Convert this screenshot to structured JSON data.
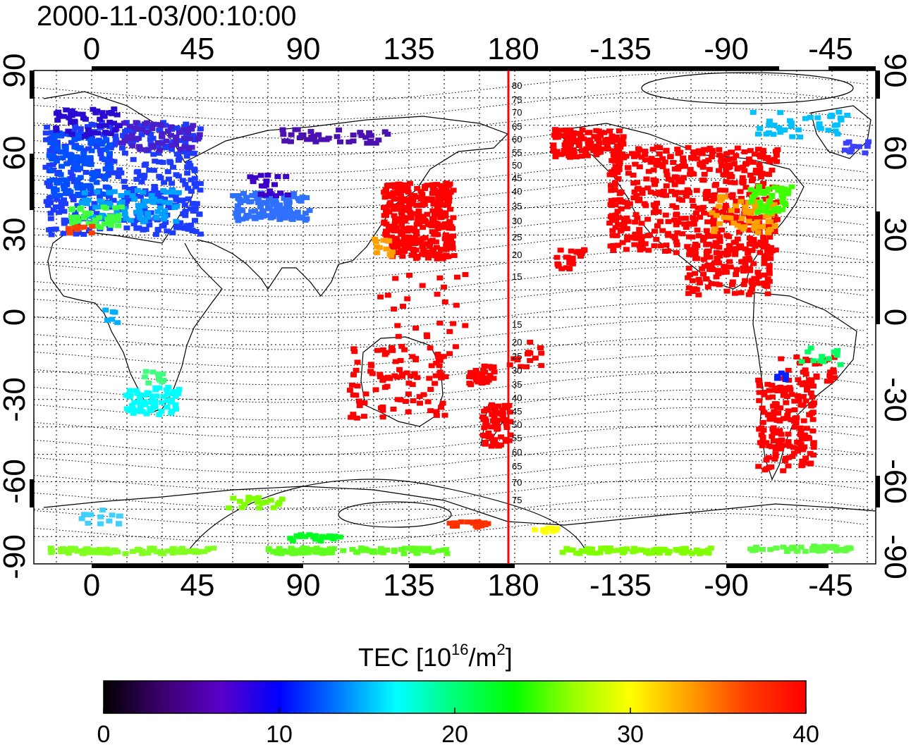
{
  "title": "2000-11-03/00:10:00",
  "map": {
    "top_axis_labels": [
      "0",
      "45",
      "90",
      "135",
      "180",
      "-135",
      "-90",
      "-45"
    ],
    "bottom_axis_labels": [
      "0",
      "45",
      "90",
      "135",
      "180",
      "-135",
      "-90",
      "-45"
    ],
    "left_axis_labels": [
      "90",
      "60",
      "30",
      "0",
      "-30",
      "-60",
      "-90"
    ],
    "right_axis_labels": [
      "90",
      "60",
      "30",
      "0",
      "-30",
      "-60",
      "-90"
    ],
    "meridian_labels_north": [
      "80",
      "75",
      "70",
      "65",
      "60",
      "55",
      "50",
      "45",
      "40",
      "35",
      "30",
      "25",
      "20",
      "15"
    ],
    "meridian_labels_south": [
      "15",
      "20",
      "25",
      "30",
      "35",
      "40",
      "45",
      "50",
      "55",
      "60",
      "65",
      "70",
      "75"
    ],
    "marker_line_color": "#ff0000",
    "grid_style": "dotted"
  },
  "colorbar": {
    "label_main": "TEC  [10",
    "label_sup1": "16",
    "label_mid": "/m",
    "label_sup2": "2",
    "label_end": "]",
    "ticks": [
      "0",
      "10",
      "20",
      "30",
      "40"
    ],
    "min": 0,
    "max": 40,
    "colors": [
      "#000000",
      "#3c006e",
      "#5a00c8",
      "#0000ff",
      "#0078ff",
      "#00ffff",
      "#00ff78",
      "#00ff00",
      "#96ff00",
      "#ffff00",
      "#ffa000",
      "#ff3c00",
      "#ff0000"
    ]
  }
}
